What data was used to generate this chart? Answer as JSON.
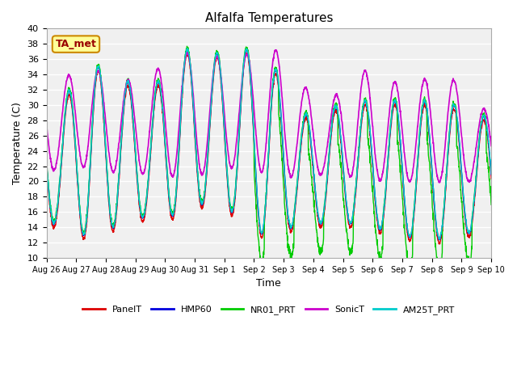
{
  "title": "Alfalfa Temperatures",
  "ylabel": "Temperature (C)",
  "xlabel": "Time",
  "ylim": [
    10,
    40
  ],
  "annotation_text": "TA_met",
  "fig_bg_color": "#ffffff",
  "plot_bg_color": "#f0f0f0",
  "grid_color": "#ffffff",
  "series_colors": {
    "PanelT": "#dd0000",
    "HMP60": "#0000dd",
    "NR01_PRT": "#00cc00",
    "SonicT": "#cc00cc",
    "AM25T_PRT": "#00cccc"
  },
  "tick_labels": [
    "Aug 26",
    "Aug 27",
    "Aug 28",
    "Aug 29",
    "Aug 30",
    "Aug 31",
    "Sep 1",
    "Sep 2",
    "Sep 3",
    "Sep 4",
    "Sep 5",
    "Sep 6",
    "Sep 7",
    "Sep 8",
    "Sep 9",
    "Sep 10"
  ],
  "yticks": [
    10,
    12,
    14,
    16,
    18,
    20,
    22,
    24,
    26,
    28,
    30,
    32,
    34,
    36,
    38,
    40
  ],
  "n_days": 15,
  "pts_per_day": 144
}
